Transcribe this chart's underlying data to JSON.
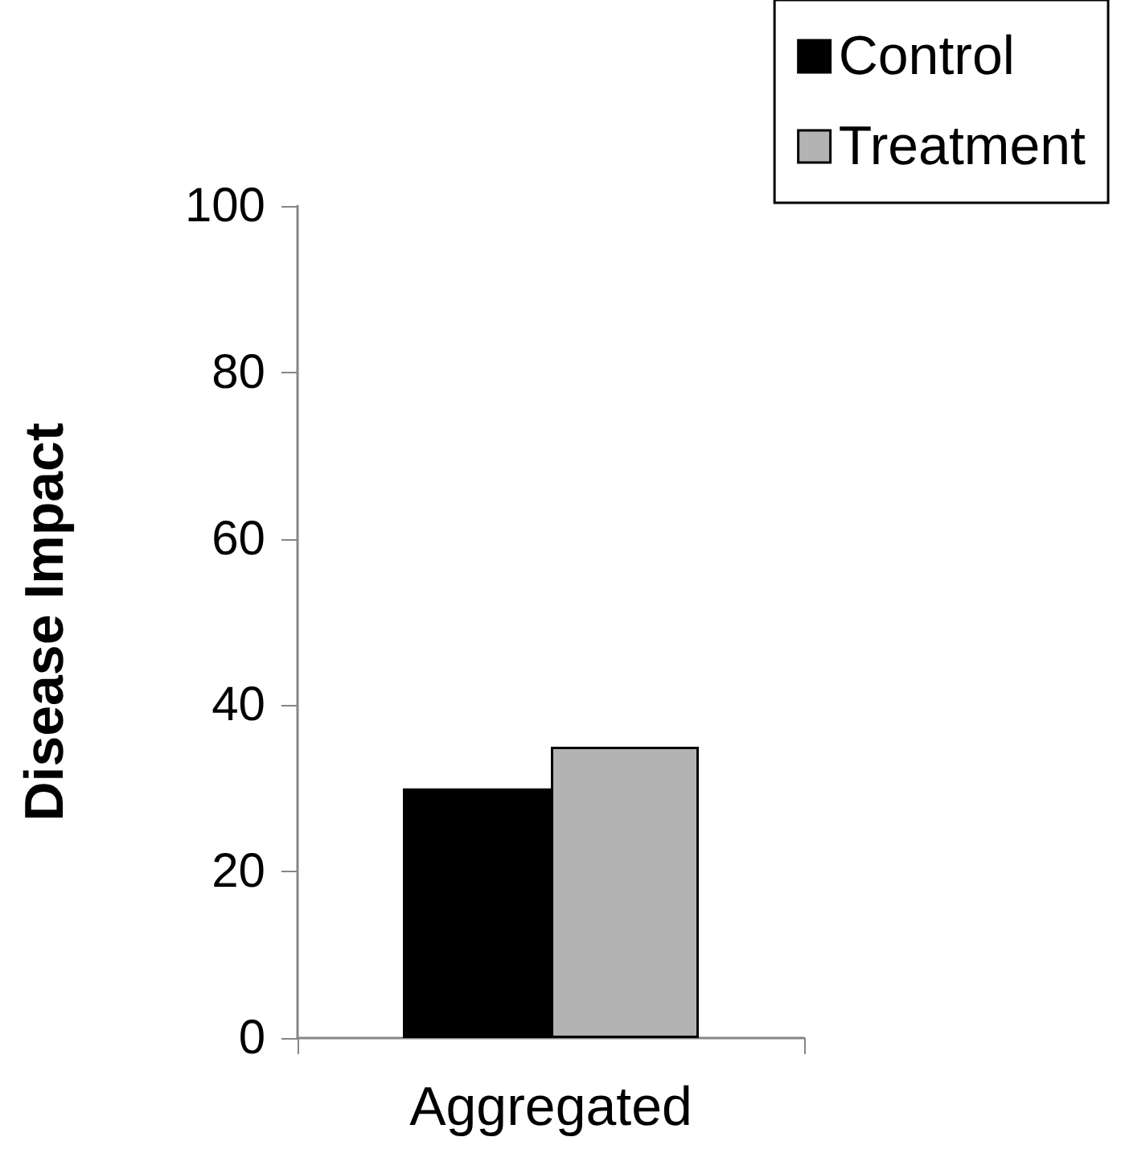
{
  "chart_data": {
    "type": "bar",
    "categories": [
      "Aggregated"
    ],
    "series": [
      {
        "name": "Control",
        "color": "#000000",
        "values": [
          30
        ]
      },
      {
        "name": "Treatment",
        "color": "#b3b3b3",
        "values": [
          35
        ]
      }
    ],
    "ylabel": "Disease Impact",
    "ylim": [
      0,
      100
    ],
    "yticks": [
      0,
      20,
      40,
      60,
      80,
      100
    ],
    "grid": false,
    "legend": "top right"
  }
}
